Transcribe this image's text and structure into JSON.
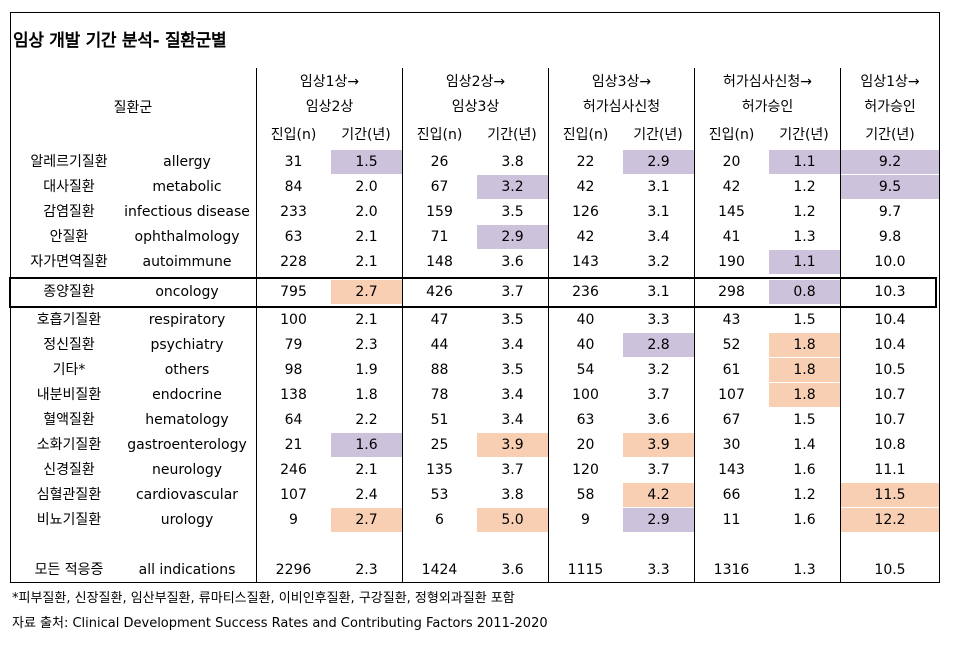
{
  "title": "임상 개발 기간 분석- 질환군별",
  "header": {
    "group_label": "질환군",
    "phases": [
      {
        "line1": "임상1상→",
        "line2": "임상2상",
        "n_label": "진입(n)",
        "period_label": "기간(년)"
      },
      {
        "line1": "임상2상→",
        "line2": "임상3상",
        "n_label": "진입(n)",
        "period_label": "기간(년)"
      },
      {
        "line1": "임상3상→",
        "line2": "허가심사신청",
        "n_label": "진입(n)",
        "period_label": "기간(년)"
      },
      {
        "line1": "허가심사신청→",
        "line2": "허가승인",
        "n_label": "진입(n)",
        "period_label": "기간(년)"
      }
    ],
    "total": {
      "line1": "임상1상→",
      "line2": "허가승인",
      "period_label": "기간(년)"
    }
  },
  "highlight_colors": {
    "purple": "#ccc2dc",
    "orange": "#f9cfb3"
  },
  "rows": [
    {
      "ko": "알레르기질환",
      "en": "allergy",
      "v": [
        "31",
        "1.5",
        "26",
        "3.8",
        "22",
        "2.9",
        "20",
        "1.1",
        "9.2"
      ],
      "hl": [
        "",
        "purple",
        "",
        "",
        "",
        "purple",
        "",
        "purple",
        "purple"
      ]
    },
    {
      "ko": "대사질환",
      "en": "metabolic",
      "v": [
        "84",
        "2.0",
        "67",
        "3.2",
        "42",
        "3.1",
        "42",
        "1.2",
        "9.5"
      ],
      "hl": [
        "",
        "",
        "",
        "purple",
        "",
        "",
        "",
        "",
        "purple"
      ]
    },
    {
      "ko": "감염질환",
      "en": "infectious disease",
      "v": [
        "233",
        "2.0",
        "159",
        "3.5",
        "126",
        "3.1",
        "145",
        "1.2",
        "9.7"
      ],
      "hl": [
        "",
        "",
        "",
        "",
        "",
        "",
        "",
        "",
        ""
      ]
    },
    {
      "ko": "안질환",
      "en": "ophthalmology",
      "v": [
        "63",
        "2.1",
        "71",
        "2.9",
        "42",
        "3.4",
        "41",
        "1.3",
        "9.8"
      ],
      "hl": [
        "",
        "",
        "",
        "purple",
        "",
        "",
        "",
        "",
        ""
      ]
    },
    {
      "ko": "자가면역질환",
      "en": "autoimmune",
      "v": [
        "228",
        "2.1",
        "148",
        "3.6",
        "143",
        "3.2",
        "190",
        "1.1",
        "10.0"
      ],
      "hl": [
        "",
        "",
        "",
        "",
        "",
        "",
        "",
        "purple",
        ""
      ]
    },
    {
      "ko": "종양질환",
      "en": "oncology",
      "v": [
        "795",
        "2.7",
        "426",
        "3.7",
        "236",
        "3.1",
        "298",
        "0.8",
        "10.3"
      ],
      "hl": [
        "",
        "orange",
        "",
        "",
        "",
        "",
        "",
        "purple",
        ""
      ]
    },
    {
      "ko": "호흡기질환",
      "en": "respiratory",
      "v": [
        "100",
        "2.1",
        "47",
        "3.5",
        "40",
        "3.3",
        "43",
        "1.5",
        "10.4"
      ],
      "hl": [
        "",
        "",
        "",
        "",
        "",
        "",
        "",
        "",
        ""
      ]
    },
    {
      "ko": "정신질환",
      "en": "psychiatry",
      "v": [
        "79",
        "2.3",
        "44",
        "3.4",
        "40",
        "2.8",
        "52",
        "1.8",
        "10.4"
      ],
      "hl": [
        "",
        "",
        "",
        "",
        "",
        "purple",
        "",
        "orange",
        ""
      ]
    },
    {
      "ko": "기타*",
      "en": "others",
      "v": [
        "98",
        "1.9",
        "88",
        "3.5",
        "54",
        "3.2",
        "61",
        "1.8",
        "10.5"
      ],
      "hl": [
        "",
        "",
        "",
        "",
        "",
        "",
        "",
        "orange",
        ""
      ]
    },
    {
      "ko": "내분비질환",
      "en": "endocrine",
      "v": [
        "138",
        "1.8",
        "78",
        "3.4",
        "100",
        "3.7",
        "107",
        "1.8",
        "10.7"
      ],
      "hl": [
        "",
        "",
        "",
        "",
        "",
        "",
        "",
        "orange",
        ""
      ]
    },
    {
      "ko": "혈액질환",
      "en": "hematology",
      "v": [
        "64",
        "2.2",
        "51",
        "3.4",
        "63",
        "3.6",
        "67",
        "1.5",
        "10.7"
      ],
      "hl": [
        "",
        "",
        "",
        "",
        "",
        "",
        "",
        "",
        ""
      ]
    },
    {
      "ko": "소화기질환",
      "en": "gastroenterology",
      "v": [
        "21",
        "1.6",
        "25",
        "3.9",
        "20",
        "3.9",
        "30",
        "1.4",
        "10.8"
      ],
      "hl": [
        "",
        "purple",
        "",
        "orange",
        "",
        "orange",
        "",
        "",
        ""
      ]
    },
    {
      "ko": "신경질환",
      "en": "neurology",
      "v": [
        "246",
        "2.1",
        "135",
        "3.7",
        "120",
        "3.7",
        "143",
        "1.6",
        "11.1"
      ],
      "hl": [
        "",
        "",
        "",
        "",
        "",
        "",
        "",
        "",
        ""
      ]
    },
    {
      "ko": "심혈관질환",
      "en": "cardiovascular",
      "v": [
        "107",
        "2.4",
        "53",
        "3.8",
        "58",
        "4.2",
        "66",
        "1.2",
        "11.5"
      ],
      "hl": [
        "",
        "",
        "",
        "",
        "",
        "orange",
        "",
        "",
        "orange"
      ]
    },
    {
      "ko": "비뇨기질환",
      "en": "urology",
      "v": [
        "9",
        "2.7",
        "6",
        "5.0",
        "9",
        "2.9",
        "11",
        "1.6",
        "12.2"
      ],
      "hl": [
        "",
        "orange",
        "",
        "orange",
        "",
        "purple",
        "",
        "",
        "orange"
      ]
    },
    {
      "ko": "모든 적응증",
      "en": "all indications",
      "v": [
        "2296",
        "2.3",
        "1424",
        "3.6",
        "1115",
        "3.3",
        "1316",
        "1.3",
        "10.5"
      ],
      "hl": [
        "",
        "",
        "",
        "",
        "",
        "",
        "",
        "",
        ""
      ]
    }
  ],
  "footnote": "*피부질환, 신장질환, 임산부질환, 류마티스질환, 이비인후질환, 구강질환, 정형외과질환 포함",
  "source": "자료 출처: Clinical Development Success Rates and Contributing Factors 2011-2020"
}
